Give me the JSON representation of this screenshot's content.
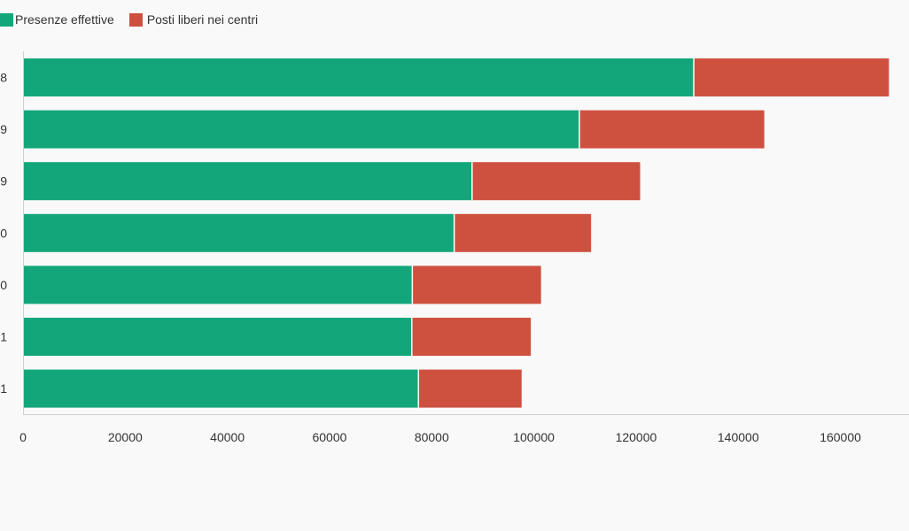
{
  "chart_data": {
    "type": "bar",
    "orientation": "horizontal",
    "stacked": true,
    "categories": [
      "8",
      "9",
      "9",
      "0",
      "0",
      "1",
      "1"
    ],
    "series": [
      {
        "name": "Presenze effettive",
        "color": "#13a67b",
        "values": [
          131300,
          108900,
          87900,
          84400,
          76200,
          76100,
          77400
        ]
      },
      {
        "name": "Posti liberi nei centri",
        "color": "#ce5140",
        "values": [
          38200,
          36200,
          32900,
          26800,
          25200,
          23300,
          20200
        ]
      }
    ],
    "xticks": [
      0,
      20000,
      40000,
      60000,
      80000,
      100000,
      120000,
      140000,
      160000
    ],
    "xlim": [
      0,
      171000
    ],
    "xlabel": "",
    "ylabel": "",
    "grid": false,
    "legend_position": "top-left"
  }
}
